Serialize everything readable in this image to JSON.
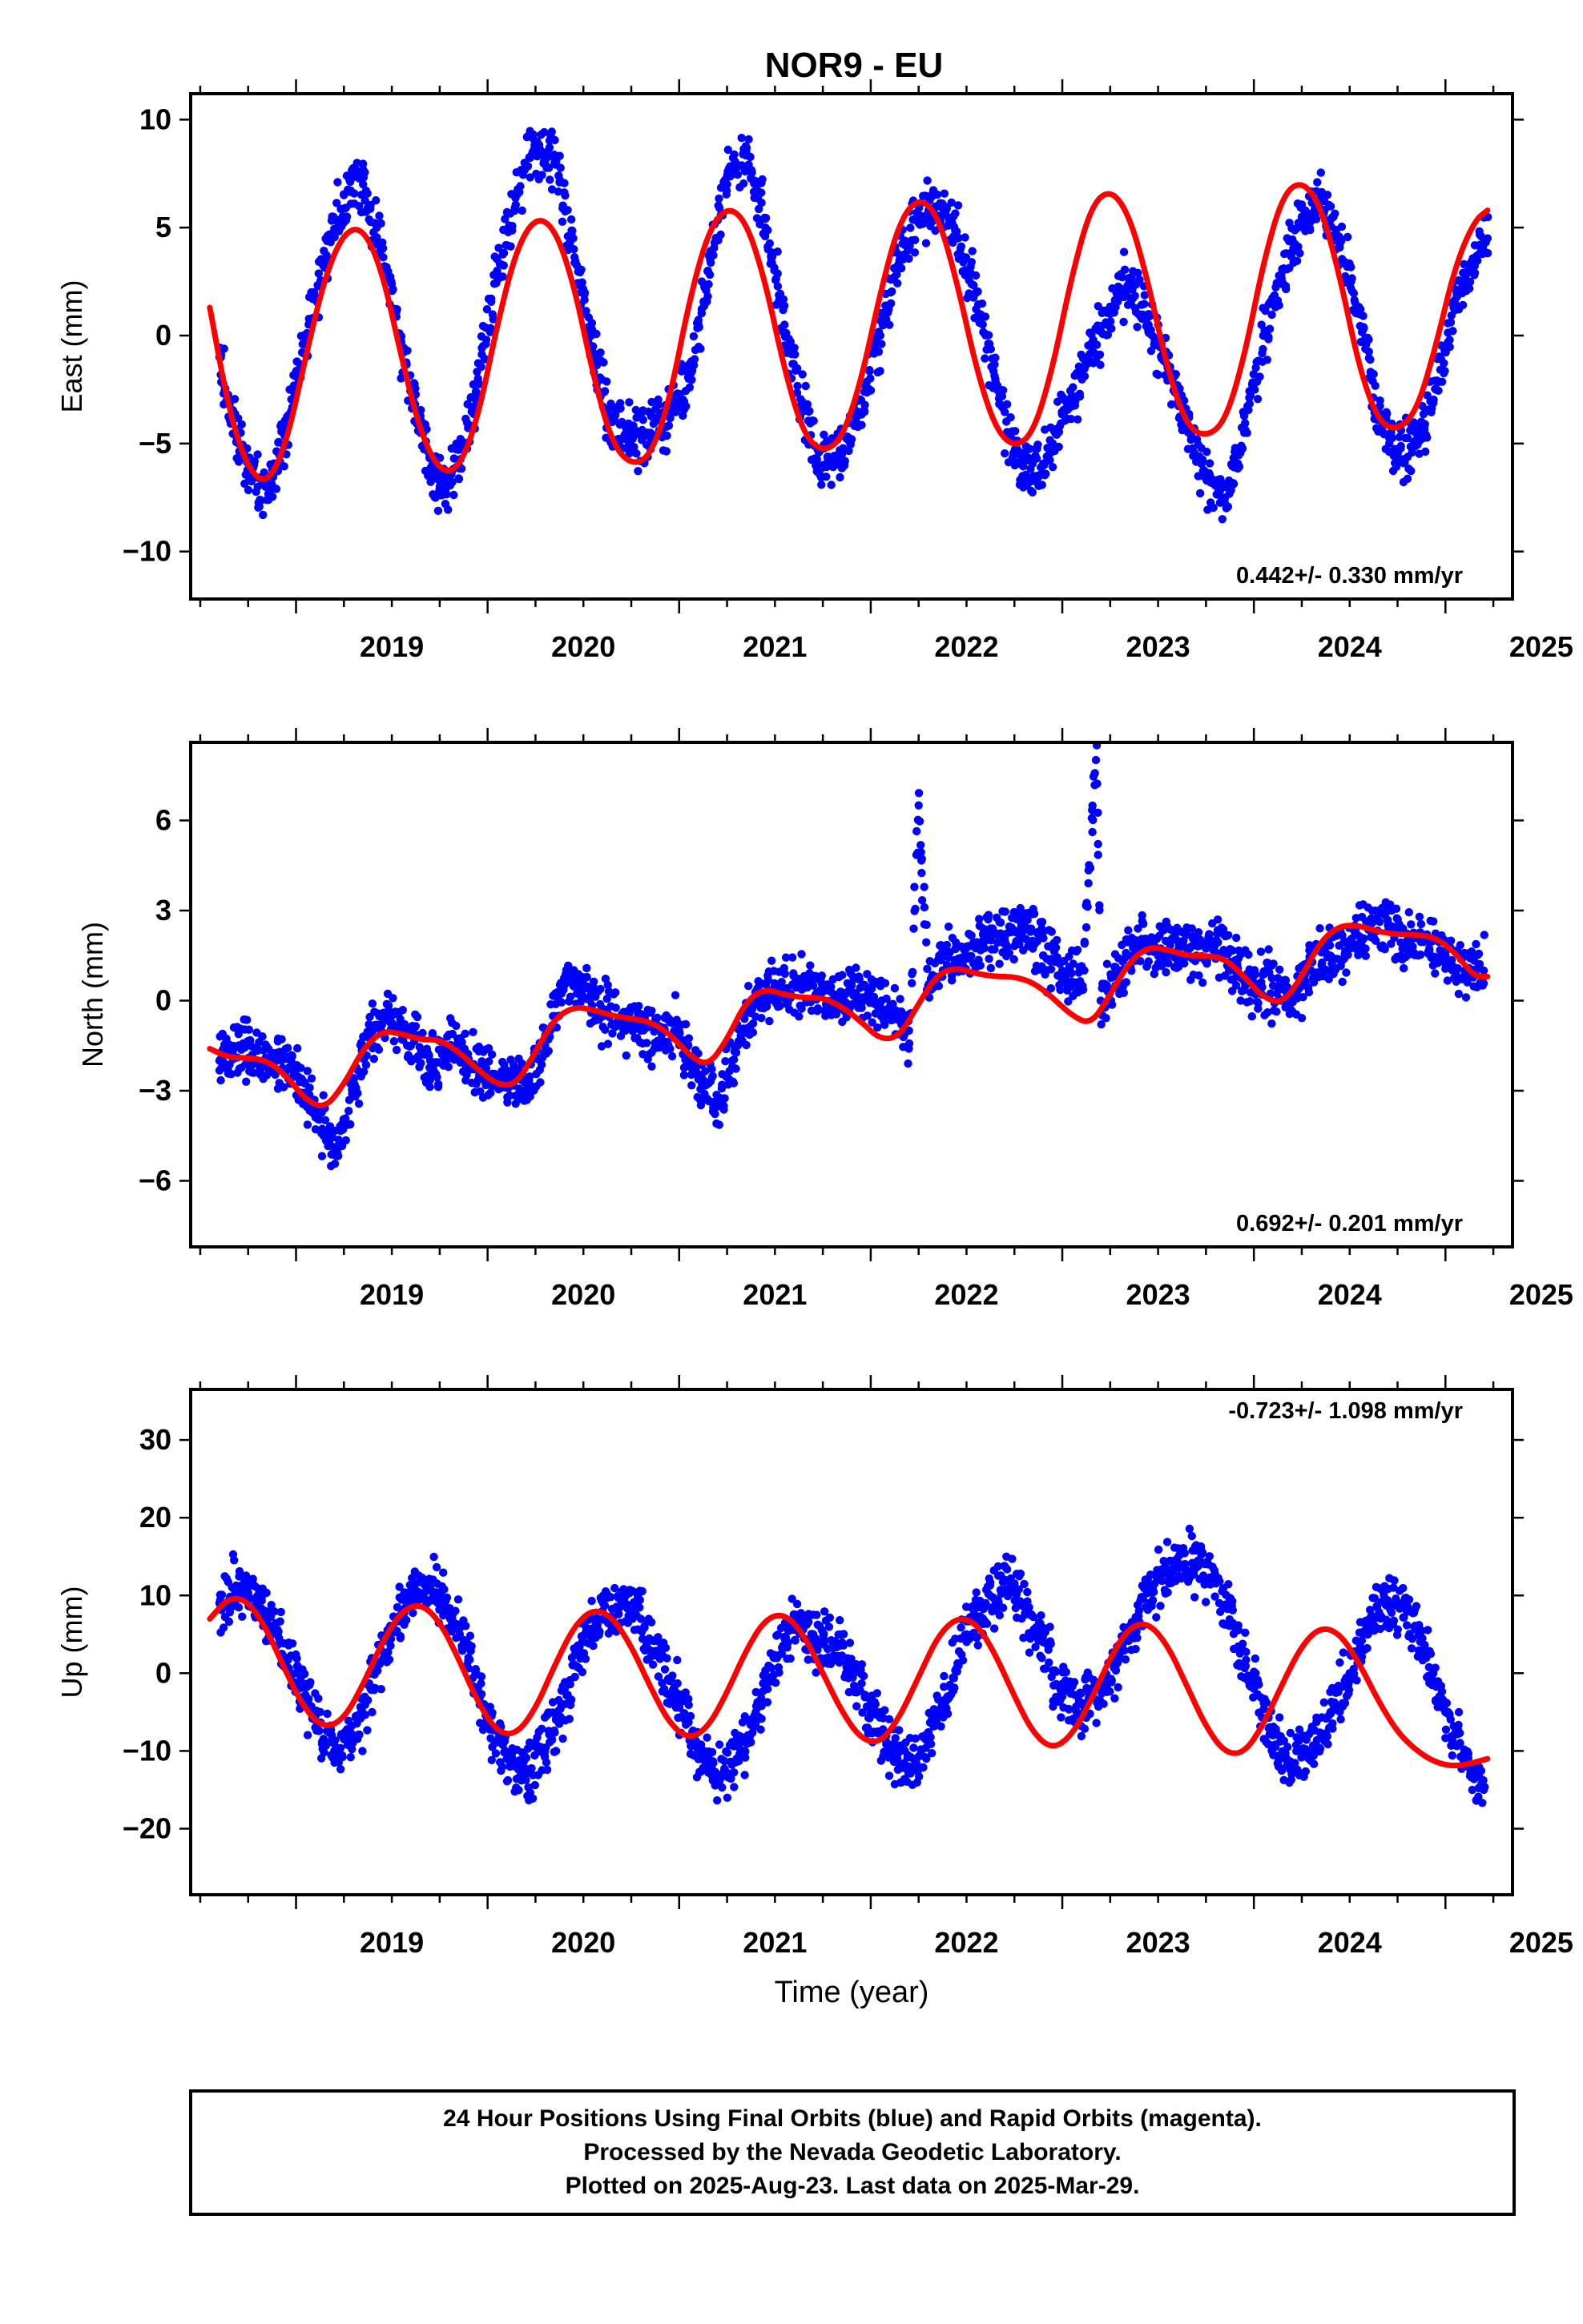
{
  "title": "NOR9 - EU",
  "colors": {
    "data": "#0000ff",
    "model": "#ff0000",
    "frame": "#000000"
  },
  "chart_data": [
    {
      "type": "scatter",
      "ylabel": "East (mm)",
      "xlabel": "",
      "xlim": [
        2018.45,
        2025.35
      ],
      "ylim": [
        -12.2,
        11.2
      ],
      "xticks": [
        2019,
        2020,
        2021,
        2022,
        2023,
        2024,
        2025
      ],
      "yticks": [
        -10,
        -5,
        0,
        5,
        10
      ],
      "rate_text": "0.442+/- 0.330 mm/yr",
      "rate_position": "bottom-right",
      "series": [
        {
          "kind": "daily positions (blue points)",
          "x": [
            2018.6,
            2018.7,
            2018.8,
            2018.87,
            2018.95,
            2019.05,
            2019.15,
            2019.25,
            2019.35,
            2019.45,
            2019.55,
            2019.65,
            2019.75,
            2019.85,
            2019.95,
            2020.05,
            2020.15,
            2020.25,
            2020.35,
            2020.45,
            2020.55,
            2020.65,
            2020.75,
            2020.85,
            2020.95,
            2021.05,
            2021.15,
            2021.25,
            2021.35,
            2021.45,
            2021.55,
            2021.65,
            2021.75,
            2021.85,
            2021.95,
            2022.05,
            2022.15,
            2022.25,
            2022.35,
            2022.45,
            2022.55,
            2022.65,
            2022.75,
            2022.85,
            2022.95,
            2023.05,
            2023.15,
            2023.25,
            2023.35,
            2023.45,
            2023.55,
            2023.65,
            2023.75,
            2023.85,
            2023.95,
            2024.05,
            2024.15,
            2024.25,
            2024.35,
            2024.45,
            2024.55,
            2024.65,
            2024.75,
            2024.85,
            2024.95,
            2025.05,
            2025.15,
            2025.22
          ],
          "y": [
            -1.0,
            -5.0,
            -7.0,
            -6.8,
            -4.0,
            0.0,
            3.5,
            6.5,
            7.0,
            4.0,
            -0.5,
            -4.5,
            -7.0,
            -6.0,
            -2.0,
            3.0,
            6.5,
            9.0,
            8.0,
            4.0,
            -0.5,
            -4.0,
            -4.5,
            -4.5,
            -3.5,
            -2.0,
            3.0,
            7.0,
            8.5,
            5.0,
            0.5,
            -3.5,
            -6.0,
            -5.5,
            -3.0,
            0.0,
            3.5,
            5.5,
            6.0,
            4.5,
            2.0,
            -2.0,
            -5.5,
            -6.5,
            -5.0,
            -3.0,
            -0.5,
            1.0,
            2.5,
            0.5,
            -1.5,
            -4.0,
            -6.5,
            -7.5,
            -4.5,
            0.0,
            3.0,
            5.5,
            6.5,
            4.5,
            1.0,
            -3.5,
            -5.5,
            -5.0,
            -2.5,
            1.5,
            3.5,
            4.5
          ]
        },
        {
          "kind": "model fit (red line)",
          "x": [
            2018.55,
            2018.65,
            2018.75,
            2018.85,
            2018.95,
            2019.05,
            2019.15,
            2019.25,
            2019.35,
            2019.45,
            2019.55,
            2019.65,
            2019.75,
            2019.85,
            2019.95,
            2020.05,
            2020.15,
            2020.25,
            2020.35,
            2020.45,
            2020.55,
            2020.65,
            2020.75,
            2020.85,
            2020.95,
            2021.05,
            2021.15,
            2021.25,
            2021.35,
            2021.45,
            2021.55,
            2021.65,
            2021.75,
            2021.85,
            2021.95,
            2022.05,
            2022.15,
            2022.25,
            2022.35,
            2022.45,
            2022.55,
            2022.65,
            2022.75,
            2022.85,
            2022.95,
            2023.05,
            2023.15,
            2023.25,
            2023.35,
            2023.45,
            2023.55,
            2023.65,
            2023.75,
            2023.85,
            2023.95,
            2024.05,
            2024.15,
            2024.25,
            2024.35,
            2024.45,
            2024.55,
            2024.65,
            2024.75,
            2024.85,
            2024.95,
            2025.05,
            2025.15,
            2025.22
          ],
          "y": [
            1.3,
            -3.5,
            -6.2,
            -6.9,
            -5.0,
            -1.0,
            2.7,
            4.8,
            5.0,
            3.0,
            -1.0,
            -4.5,
            -6.3,
            -6.2,
            -3.8,
            0.5,
            4.0,
            5.5,
            5.0,
            2.4,
            -1.8,
            -5.0,
            -6.0,
            -5.6,
            -3.0,
            1.5,
            4.8,
            6.0,
            5.3,
            2.5,
            -1.6,
            -4.6,
            -5.4,
            -4.8,
            -2.1,
            2.0,
            5.3,
            6.4,
            5.6,
            2.5,
            -1.5,
            -4.3,
            -5.2,
            -4.5,
            -1.5,
            2.8,
            6.0,
            6.8,
            5.6,
            2.4,
            -1.6,
            -4.2,
            -4.7,
            -4.0,
            -1.0,
            3.4,
            6.5,
            7.2,
            6.0,
            2.7,
            -1.5,
            -4.0,
            -4.4,
            -3.5,
            -0.5,
            3.2,
            5.3,
            5.8
          ]
        }
      ]
    },
    {
      "type": "scatter",
      "ylabel": "North (mm)",
      "xlabel": "",
      "xlim": [
        2018.45,
        2025.35
      ],
      "ylim": [
        -8.2,
        8.6
      ],
      "xticks": [
        2019,
        2020,
        2021,
        2022,
        2023,
        2024,
        2025
      ],
      "yticks": [
        -6,
        -3,
        0,
        3,
        6
      ],
      "rate_text": "0.692+/- 0.201 mm/yr",
      "rate_position": "bottom-right",
      "series": [
        {
          "kind": "daily positions (blue points)",
          "x": [
            2018.6,
            2018.7,
            2018.8,
            2018.9,
            2019.0,
            2019.1,
            2019.2,
            2019.3,
            2019.4,
            2019.5,
            2019.6,
            2019.7,
            2019.8,
            2019.9,
            2020.0,
            2020.1,
            2020.2,
            2020.3,
            2020.4,
            2020.5,
            2020.6,
            2020.7,
            2020.8,
            2020.9,
            2021.0,
            2021.1,
            2021.2,
            2021.3,
            2021.4,
            2021.5,
            2021.6,
            2021.7,
            2021.8,
            2021.9,
            2022.0,
            2022.1,
            2022.2,
            2022.25,
            2022.3,
            2022.4,
            2022.5,
            2022.6,
            2022.7,
            2022.8,
            2022.9,
            2023.0,
            2023.1,
            2023.18,
            2023.2,
            2023.3,
            2023.4,
            2023.5,
            2023.6,
            2023.7,
            2023.8,
            2023.9,
            2024.0,
            2024.1,
            2024.2,
            2024.3,
            2024.4,
            2024.5,
            2024.6,
            2024.7,
            2024.8,
            2024.9,
            2025.0,
            2025.1,
            2025.2
          ],
          "y": [
            -2.0,
            -1.5,
            -2.0,
            -2.0,
            -2.5,
            -3.5,
            -5.0,
            -3.0,
            -1.0,
            -0.5,
            -1.5,
            -2.0,
            -1.5,
            -2.0,
            -2.5,
            -2.5,
            -3.0,
            -1.5,
            0.5,
            0.5,
            -0.5,
            -0.5,
            -1.0,
            -1.0,
            -1.0,
            -2.5,
            -3.5,
            -1.5,
            0.0,
            0.5,
            0.5,
            0.5,
            0.0,
            0.5,
            0.0,
            -0.5,
            -1.0,
            6.5,
            0.5,
            1.5,
            1.5,
            2.0,
            2.0,
            2.5,
            1.5,
            1.0,
            0.5,
            8.5,
            0.0,
            1.0,
            2.0,
            1.5,
            2.0,
            1.5,
            2.0,
            1.0,
            0.5,
            0.5,
            0.0,
            1.0,
            1.5,
            2.0,
            2.5,
            2.5,
            2.0,
            2.0,
            1.5,
            1.0,
            1.0
          ]
        },
        {
          "kind": "model fit (red line)",
          "x": [
            2018.55,
            2018.65,
            2018.75,
            2018.85,
            2018.95,
            2019.05,
            2019.15,
            2019.25,
            2019.35,
            2019.45,
            2019.55,
            2019.65,
            2019.75,
            2019.85,
            2019.95,
            2020.05,
            2020.15,
            2020.25,
            2020.35,
            2020.45,
            2020.55,
            2020.65,
            2020.75,
            2020.85,
            2020.95,
            2021.05,
            2021.15,
            2021.25,
            2021.35,
            2021.45,
            2021.55,
            2021.65,
            2021.75,
            2021.85,
            2021.95,
            2022.05,
            2022.15,
            2022.25,
            2022.35,
            2022.45,
            2022.55,
            2022.65,
            2022.75,
            2022.85,
            2022.95,
            2023.05,
            2023.15,
            2023.25,
            2023.35,
            2023.45,
            2023.55,
            2023.65,
            2023.75,
            2023.85,
            2023.95,
            2024.05,
            2024.15,
            2024.25,
            2024.35,
            2024.45,
            2024.55,
            2024.65,
            2024.75,
            2024.85,
            2024.95,
            2025.05,
            2025.15,
            2025.22
          ],
          "y": [
            -1.6,
            -1.9,
            -1.9,
            -2.0,
            -2.5,
            -3.3,
            -3.6,
            -2.8,
            -1.6,
            -1.0,
            -1.1,
            -1.3,
            -1.3,
            -1.7,
            -2.3,
            -2.8,
            -2.8,
            -1.7,
            -0.6,
            -0.2,
            -0.3,
            -0.5,
            -0.6,
            -0.7,
            -1.1,
            -1.8,
            -2.2,
            -1.3,
            0.0,
            0.4,
            0.2,
            0.1,
            0.1,
            -0.2,
            -0.7,
            -1.3,
            -1.2,
            -0.1,
            0.9,
            1.1,
            0.9,
            0.8,
            0.8,
            0.6,
            0.1,
            -0.5,
            -0.8,
            0.2,
            1.3,
            1.8,
            1.7,
            1.5,
            1.5,
            1.4,
            0.8,
            0.1,
            -0.1,
            0.8,
            2.0,
            2.5,
            2.5,
            2.3,
            2.2,
            2.2,
            2.1,
            1.6,
            0.8,
            0.8
          ]
        }
      ]
    },
    {
      "type": "scatter",
      "ylabel": "Up (mm)",
      "xlabel": "Time (year)",
      "xlim": [
        2018.45,
        2025.35
      ],
      "ylim": [
        -28.5,
        36.5
      ],
      "xticks": [
        2019,
        2020,
        2021,
        2022,
        2023,
        2024,
        2025
      ],
      "yticks": [
        -20,
        -10,
        0,
        10,
        20,
        30
      ],
      "rate_text": "-0.723+/- 1.098 mm/yr",
      "rate_position": "top-right",
      "series": [
        {
          "kind": "daily positions (blue points)",
          "x": [
            2018.6,
            2018.7,
            2018.8,
            2018.9,
            2019.0,
            2019.1,
            2019.2,
            2019.3,
            2019.4,
            2019.5,
            2019.6,
            2019.7,
            2019.8,
            2019.9,
            2020.0,
            2020.1,
            2020.2,
            2020.3,
            2020.4,
            2020.5,
            2020.6,
            2020.7,
            2020.8,
            2020.9,
            2021.0,
            2021.1,
            2021.2,
            2021.3,
            2021.4,
            2021.5,
            2021.6,
            2021.7,
            2021.8,
            2021.9,
            2022.0,
            2022.1,
            2022.2,
            2022.3,
            2022.4,
            2022.5,
            2022.6,
            2022.7,
            2022.8,
            2022.9,
            2023.0,
            2023.1,
            2023.2,
            2023.3,
            2023.4,
            2023.5,
            2023.6,
            2023.7,
            2023.8,
            2023.9,
            2024.0,
            2024.1,
            2024.2,
            2024.3,
            2024.4,
            2024.5,
            2024.6,
            2024.7,
            2024.8,
            2024.9,
            2025.0,
            2025.1,
            2025.2
          ],
          "y": [
            9,
            11,
            10,
            5,
            0,
            -6,
            -10,
            -8,
            -2,
            6,
            10,
            11,
            8,
            2,
            -6,
            -11,
            -13,
            -10,
            -4,
            4,
            8,
            9,
            7,
            2,
            -4,
            -10,
            -14,
            -11,
            -5,
            2,
            6,
            5,
            4,
            0,
            -5,
            -10,
            -12,
            -9,
            -3,
            5,
            9,
            12,
            9,
            4,
            -3,
            -4,
            -2,
            2,
            8,
            12,
            14,
            14,
            12,
            6,
            -2,
            -8,
            -12,
            -10,
            -5,
            0,
            6,
            9,
            8,
            2,
            -5,
            -10,
            -15
          ]
        },
        {
          "kind": "model fit (red line)",
          "x": [
            2018.55,
            2018.65,
            2018.75,
            2018.85,
            2018.95,
            2019.05,
            2019.15,
            2019.25,
            2019.35,
            2019.45,
            2019.55,
            2019.65,
            2019.75,
            2019.85,
            2019.95,
            2020.05,
            2020.15,
            2020.25,
            2020.35,
            2020.45,
            2020.55,
            2020.65,
            2020.75,
            2020.85,
            2020.95,
            2021.05,
            2021.15,
            2021.25,
            2021.35,
            2021.45,
            2021.55,
            2021.65,
            2021.75,
            2021.85,
            2021.95,
            2022.05,
            2022.15,
            2022.25,
            2022.35,
            2022.45,
            2022.55,
            2022.65,
            2022.75,
            2022.85,
            2022.95,
            2023.05,
            2023.15,
            2023.25,
            2023.35,
            2023.45,
            2023.55,
            2023.65,
            2023.75,
            2023.85,
            2023.95,
            2024.05,
            2024.15,
            2024.25,
            2024.35,
            2024.45,
            2024.55,
            2024.65,
            2024.75,
            2024.85,
            2024.95,
            2025.05,
            2025.15,
            2025.22
          ],
          "y": [
            7.0,
            9.8,
            9.3,
            5.5,
            0.0,
            -4.8,
            -7.1,
            -5.9,
            -1.5,
            4.0,
            8.0,
            9.0,
            6.7,
            1.8,
            -3.8,
            -7.6,
            -7.9,
            -4.6,
            1.0,
            6.0,
            8.3,
            7.3,
            3.5,
            -1.8,
            -6.5,
            -8.5,
            -7.0,
            -2.5,
            3.0,
            7.0,
            7.7,
            5.0,
            0.0,
            -5.0,
            -8.5,
            -9.0,
            -5.7,
            -0.5,
            4.8,
            7.2,
            6.5,
            2.5,
            -3.0,
            -7.8,
            -9.8,
            -8.0,
            -3.5,
            2.0,
            6.0,
            6.5,
            3.6,
            -1.6,
            -6.9,
            -10.3,
            -10.3,
            -6.6,
            -1.3,
            3.6,
            6.0,
            5.1,
            1.3,
            -3.6,
            -7.6,
            -10.0,
            -11.5,
            -12.0,
            -11.5,
            -11.0
          ]
        }
      ]
    }
  ],
  "footer": {
    "line1": "24 Hour Positions Using Final Orbits (blue) and Rapid Orbits (magenta).",
    "line2": "Processed by the Nevada Geodetic Laboratory.",
    "line3": "Plotted on 2025-Aug-23. Last data on 2025-Mar-29."
  }
}
